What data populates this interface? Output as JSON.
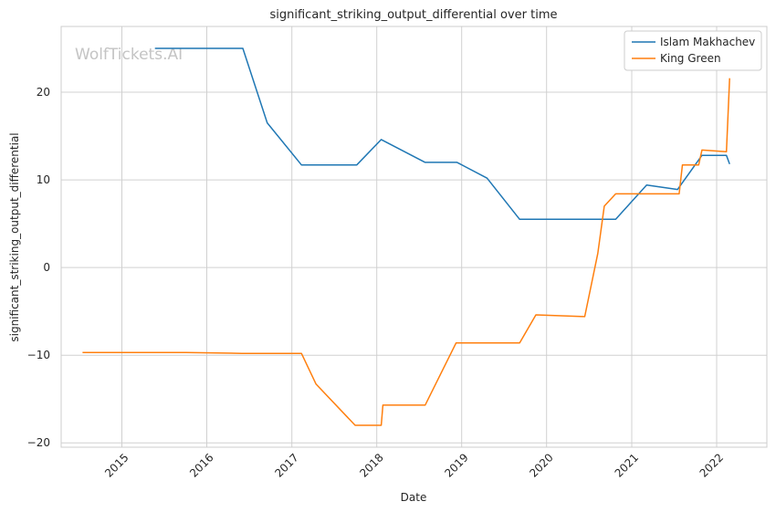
{
  "chart_data": {
    "type": "line",
    "title": "significant_striking_output_differential over time",
    "xlabel": "Date",
    "ylabel": "significant_striking_output_differential",
    "watermark": "WolfTickets.AI",
    "xlim": [
      "2014-04-15",
      "2022-08-05"
    ],
    "ylim": [
      -20.5,
      27.5
    ],
    "x_ticks": [
      "2015-01-01",
      "2016-01-01",
      "2017-01-01",
      "2018-01-01",
      "2019-01-01",
      "2020-01-01",
      "2021-01-01",
      "2022-01-01"
    ],
    "x_tick_labels": [
      "2015",
      "2016",
      "2017",
      "2018",
      "2019",
      "2020",
      "2021",
      "2022"
    ],
    "y_ticks": [
      -20,
      -10,
      0,
      10,
      20
    ],
    "y_tick_labels": [
      "−20",
      "−10",
      "0",
      "10",
      "20"
    ],
    "grid": true,
    "legend_position": "top-right",
    "series": [
      {
        "name": "Islam Makhachev",
        "color": "#1f77b4",
        "points": [
          [
            "2015-05-23",
            25.0
          ],
          [
            "2016-06-04",
            25.0
          ],
          [
            "2016-09-17",
            16.5
          ],
          [
            "2017-02-11",
            11.7
          ],
          [
            "2017-10-07",
            11.7
          ],
          [
            "2018-01-20",
            14.6
          ],
          [
            "2018-07-28",
            12.0
          ],
          [
            "2018-12-12",
            12.0
          ],
          [
            "2019-04-20",
            10.2
          ],
          [
            "2019-09-07",
            5.5
          ],
          [
            "2020-10-24",
            5.5
          ],
          [
            "2021-03-06",
            9.4
          ],
          [
            "2021-07-17",
            8.9
          ],
          [
            "2021-10-30",
            12.8
          ],
          [
            "2022-02-12",
            12.8
          ],
          [
            "2022-02-26",
            11.8
          ]
        ]
      },
      {
        "name": "King Green",
        "color": "#ff7f0e",
        "points": [
          [
            "2014-07-16",
            -9.7
          ],
          [
            "2015-10-03",
            -9.7
          ],
          [
            "2016-06-01",
            -9.8
          ],
          [
            "2017-02-11",
            -9.8
          ],
          [
            "2017-04-15",
            -13.3
          ],
          [
            "2017-09-30",
            -18.0
          ],
          [
            "2018-01-20",
            -18.0
          ],
          [
            "2018-01-27",
            -15.7
          ],
          [
            "2018-07-28",
            -15.7
          ],
          [
            "2018-12-08",
            -8.6
          ],
          [
            "2019-09-07",
            -8.6
          ],
          [
            "2019-11-16",
            -5.4
          ],
          [
            "2020-06-13",
            -5.6
          ],
          [
            "2020-08-08",
            1.6
          ],
          [
            "2020-09-05",
            7.0
          ],
          [
            "2020-10-24",
            8.4
          ],
          [
            "2021-07-24",
            8.4
          ],
          [
            "2021-08-07",
            11.7
          ],
          [
            "2021-10-16",
            11.7
          ],
          [
            "2021-10-30",
            13.4
          ],
          [
            "2022-02-12",
            13.2
          ],
          [
            "2022-02-26",
            21.6
          ]
        ]
      }
    ]
  }
}
